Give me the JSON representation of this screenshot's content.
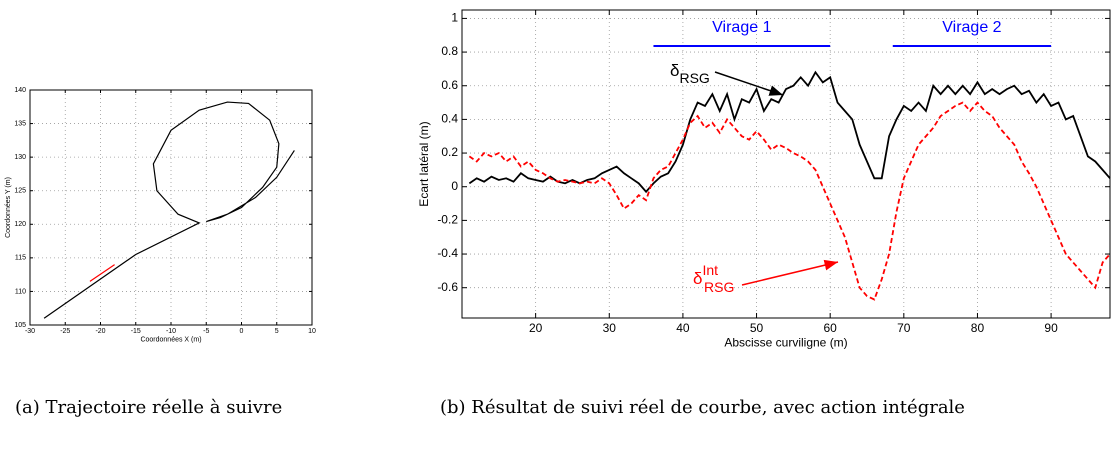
{
  "chart_data": [
    {
      "type": "line",
      "xlabel": "Coordonnées X (m)",
      "ylabel": "Coordonnées Y (m)",
      "xlim": [
        -30,
        10
      ],
      "ylim": [
        105,
        140
      ],
      "xticks": [
        -30,
        -25,
        -20,
        -15,
        -10,
        -5,
        0,
        5,
        10
      ],
      "yticks": [
        105,
        110,
        115,
        120,
        125,
        130,
        135,
        140
      ],
      "grid": true,
      "series": [
        {
          "color": "#000000",
          "style": "solid",
          "x": [
            -28,
            -15,
            -6,
            -9,
            -12,
            -12.5,
            -10,
            -6,
            -2,
            1,
            4,
            5.3,
            5,
            3,
            0,
            -3,
            -5,
            -2,
            2,
            5,
            7.5
          ],
          "values": [
            106,
            115.5,
            120.2,
            121.5,
            125,
            129,
            134,
            137,
            138.2,
            138,
            135.5,
            132,
            128.5,
            125.5,
            122.5,
            121,
            120.4,
            121.5,
            124,
            127,
            131
          ]
        },
        {
          "color": "#ff0000",
          "style": "solid",
          "x": [
            -21.5,
            -18
          ],
          "values": [
            111.5,
            114
          ]
        }
      ],
      "caption": "(a) Trajectoire réelle à suivre"
    },
    {
      "type": "line",
      "xlabel": "Abscisse curviligne (m)",
      "ylabel": "Ecart latéral (m)",
      "xlim": [
        10,
        98
      ],
      "ylim": [
        -0.78,
        1.05
      ],
      "xticks": [
        20,
        30,
        40,
        50,
        60,
        70,
        80,
        90
      ],
      "yticks": [
        -0.6,
        -0.4,
        -0.2,
        0,
        0.2,
        0.4,
        0.6,
        0.8,
        1
      ],
      "grid": true,
      "x": [
        11,
        12,
        13,
        14,
        15,
        16,
        17,
        18,
        19,
        20,
        21,
        22,
        23,
        24,
        25,
        26,
        27,
        28,
        29,
        30,
        31,
        32,
        33,
        34,
        35,
        36,
        37,
        38,
        39,
        40,
        41,
        42,
        43,
        44,
        45,
        46,
        47,
        48,
        49,
        50,
        51,
        52,
        53,
        54,
        55,
        56,
        57,
        58,
        59,
        60,
        61,
        62,
        63,
        64,
        65,
        66,
        67,
        68,
        69,
        70,
        71,
        72,
        73,
        74,
        75,
        76,
        77,
        78,
        79,
        80,
        81,
        82,
        83,
        84,
        85,
        86,
        87,
        88,
        89,
        90,
        91,
        92,
        93,
        94,
        95,
        96,
        97,
        98
      ],
      "series": [
        {
          "color": "#000000",
          "style": "solid",
          "values": [
            0.02,
            0.05,
            0.03,
            0.06,
            0.04,
            0.05,
            0.03,
            0.08,
            0.05,
            0.04,
            0.03,
            0.06,
            0.03,
            0.02,
            0.04,
            0.02,
            0.04,
            0.05,
            0.08,
            0.1,
            0.12,
            0.08,
            0.05,
            0.02,
            -0.03,
            0.02,
            0.06,
            0.08,
            0.15,
            0.25,
            0.4,
            0.5,
            0.48,
            0.55,
            0.45,
            0.55,
            0.4,
            0.52,
            0.5,
            0.58,
            0.45,
            0.52,
            0.5,
            0.58,
            0.6,
            0.65,
            0.6,
            0.68,
            0.62,
            0.65,
            0.5,
            0.45,
            0.4,
            0.25,
            0.15,
            0.05,
            0.05,
            0.3,
            0.4,
            0.48,
            0.45,
            0.5,
            0.45,
            0.6,
            0.55,
            0.6,
            0.55,
            0.6,
            0.55,
            0.62,
            0.55,
            0.58,
            0.55,
            0.58,
            0.6,
            0.55,
            0.57,
            0.5,
            0.55,
            0.48,
            0.5,
            0.4,
            0.42,
            0.3,
            0.18,
            0.15,
            0.1,
            0.05
          ]
        },
        {
          "color": "#ff0000",
          "style": "dashed",
          "values": [
            0.18,
            0.15,
            0.2,
            0.18,
            0.2,
            0.15,
            0.18,
            0.12,
            0.15,
            0.1,
            0.08,
            0.05,
            0.03,
            0.04,
            0.03,
            0.02,
            0.03,
            0.02,
            0.05,
            0.02,
            -0.05,
            -0.13,
            -0.1,
            -0.05,
            -0.08,
            0.05,
            0.1,
            0.12,
            0.2,
            0.28,
            0.38,
            0.42,
            0.35,
            0.38,
            0.32,
            0.4,
            0.35,
            0.3,
            0.28,
            0.33,
            0.28,
            0.22,
            0.25,
            0.23,
            0.2,
            0.18,
            0.15,
            0.1,
            0.0,
            -0.1,
            -0.2,
            -0.3,
            -0.45,
            -0.6,
            -0.65,
            -0.67,
            -0.55,
            -0.4,
            -0.15,
            0.05,
            0.15,
            0.25,
            0.3,
            0.35,
            0.42,
            0.45,
            0.48,
            0.5,
            0.45,
            0.5,
            0.45,
            0.42,
            0.35,
            0.3,
            0.25,
            0.15,
            0.08,
            0.0,
            -0.1,
            -0.2,
            -0.3,
            -0.4,
            -0.45,
            -0.5,
            -0.55,
            -0.6,
            -0.45,
            -0.4
          ]
        }
      ],
      "spans": [
        {
          "label": "Virage 1",
          "x": [
            36,
            60
          ],
          "color": "#0000ff"
        },
        {
          "label": "Virage 2",
          "x": [
            68.5,
            90
          ],
          "color": "#0000ff"
        }
      ],
      "annotations": [
        {
          "text": "δ",
          "sub": "RSG",
          "color": "#000000"
        },
        {
          "text": "δ",
          "sup": "Int",
          "sub": "RSG",
          "color": "#ff0000"
        }
      ],
      "caption": "(b) Résultat de suivi réel de courbe, avec action intégrale"
    }
  ]
}
